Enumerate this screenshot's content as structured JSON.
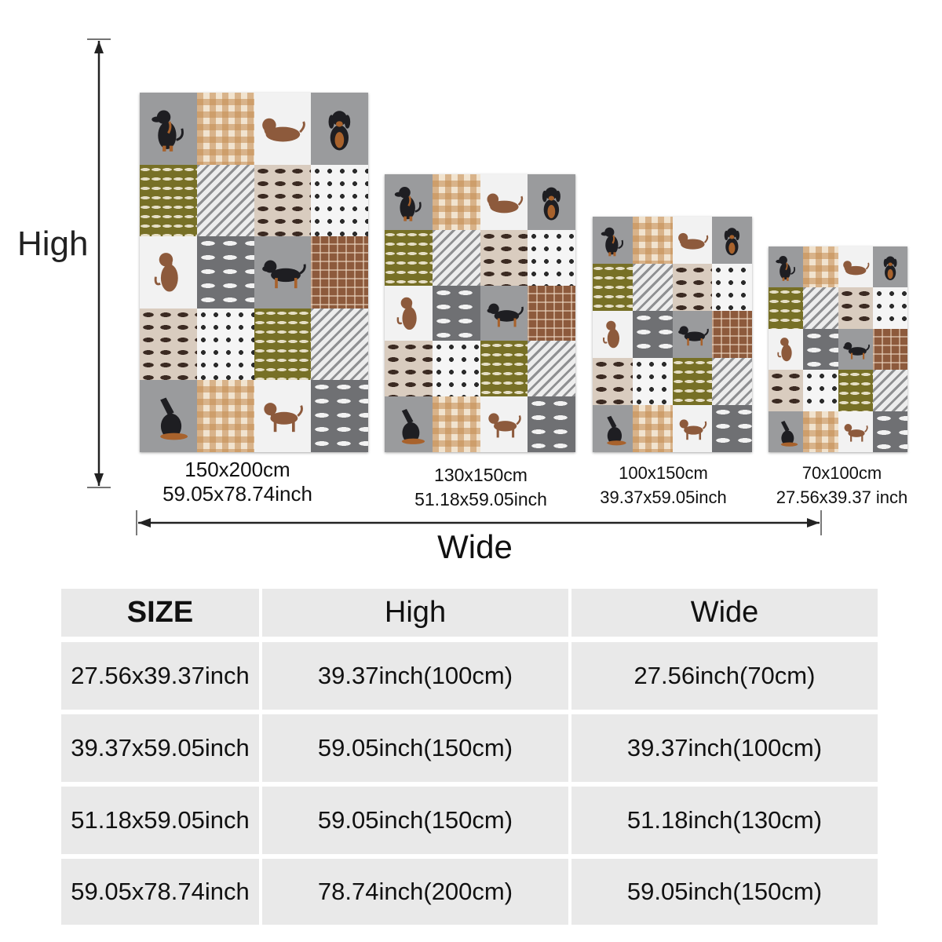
{
  "labels": {
    "high": "High",
    "wide": "Wide"
  },
  "colors": {
    "gray_tile": "#9a9b9d",
    "olive": "#777026",
    "plaid_brown": "#8d5a3c",
    "gingham_tan": "#c48c52",
    "dog_black": "#1e1e22",
    "dog_tan": "#a8622c",
    "table_cell": "#e9e9e9"
  },
  "blankets": [
    {
      "size_cm": "150x200cm",
      "size_inch": "59.05x78.74inch"
    },
    {
      "size_cm": "130x150cm",
      "size_inch": "51.18x59.05inch"
    },
    {
      "size_cm": "100x150cm",
      "size_inch": "39.37x59.05inch"
    },
    {
      "size_cm": "70x100cm",
      "size_inch": "27.56x39.37 inch"
    }
  ],
  "tile_pattern": [
    "dog-sitting",
    "gingham",
    "plaid-dog-lying",
    "dog-front",
    "olive-dachshund",
    "stripe",
    "beige-dogs",
    "paw",
    "plaid-dog-sitting",
    "bone",
    "dog-standing",
    "plaid",
    "beige-dogs",
    "paw",
    "olive-dachshund",
    "stripe",
    "dog-howling",
    "gingham",
    "plaid-dog-standing",
    "bone"
  ],
  "table": {
    "headers": [
      "SIZE",
      "High",
      "Wide"
    ],
    "rows": [
      [
        "27.56x39.37inch",
        "39.37inch(100cm)",
        "27.56inch(70cm)"
      ],
      [
        "39.37x59.05inch",
        "59.05inch(150cm)",
        "39.37inch(100cm)"
      ],
      [
        "51.18x59.05inch",
        "59.05inch(150cm)",
        "51.18inch(130cm)"
      ],
      [
        "59.05x78.74inch",
        "78.74inch(200cm)",
        "59.05inch(150cm)"
      ]
    ]
  }
}
